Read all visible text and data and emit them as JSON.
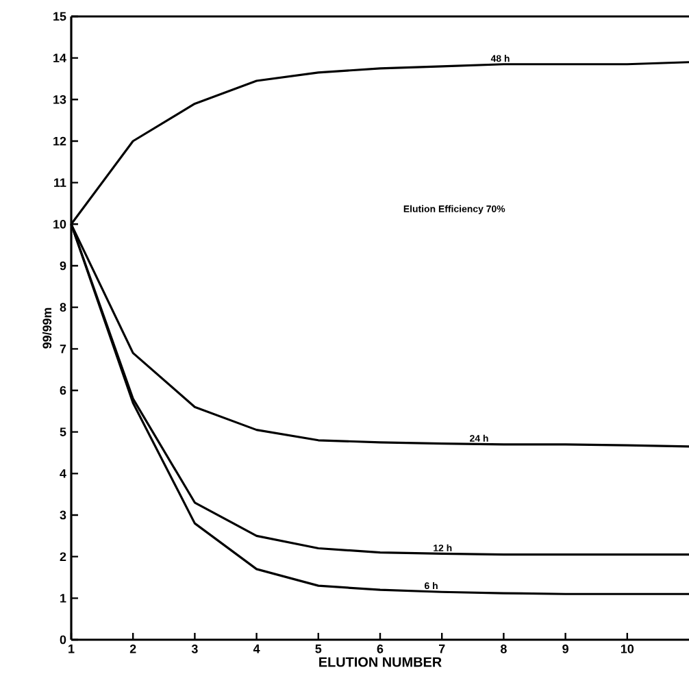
{
  "chart_data": {
    "type": "line",
    "xlabel": "ELUTION NUMBER",
    "ylabel": "99/99m",
    "x": [
      1,
      2,
      3,
      4,
      5,
      6,
      7,
      8,
      9,
      10,
      11
    ],
    "series": [
      {
        "name": "48 h",
        "color": "#000000",
        "values": [
          10,
          12,
          12.9,
          13.45,
          13.65,
          13.75,
          13.8,
          13.85,
          13.85,
          13.85,
          13.9
        ]
      },
      {
        "name": "24 h",
        "color": "#000000",
        "values": [
          10,
          6.9,
          5.6,
          5.05,
          4.8,
          4.75,
          4.72,
          4.7,
          4.7,
          4.68,
          4.65
        ]
      },
      {
        "name": "12 h",
        "color": "#000000",
        "values": [
          10,
          5.8,
          3.3,
          2.5,
          2.2,
          2.1,
          2.07,
          2.05,
          2.05,
          2.05,
          2.05
        ]
      },
      {
        "name": "6 h",
        "color": "#000000",
        "values": [
          10,
          5.7,
          2.8,
          1.7,
          1.3,
          1.2,
          1.15,
          1.12,
          1.1,
          1.1,
          1.1
        ]
      }
    ],
    "annotations": [
      "Elution Efficiency 70%"
    ],
    "xlim": [
      1,
      11
    ],
    "ylim": [
      0,
      15
    ],
    "xticks": [
      1,
      2,
      3,
      4,
      5,
      6,
      7,
      8,
      9,
      10
    ],
    "yticks": [
      0,
      1,
      2,
      3,
      4,
      5,
      6,
      7,
      8,
      9,
      10,
      11,
      12,
      13,
      14,
      15
    ],
    "grid": false,
    "legend": false,
    "marker": "none",
    "line_style": "solid"
  }
}
